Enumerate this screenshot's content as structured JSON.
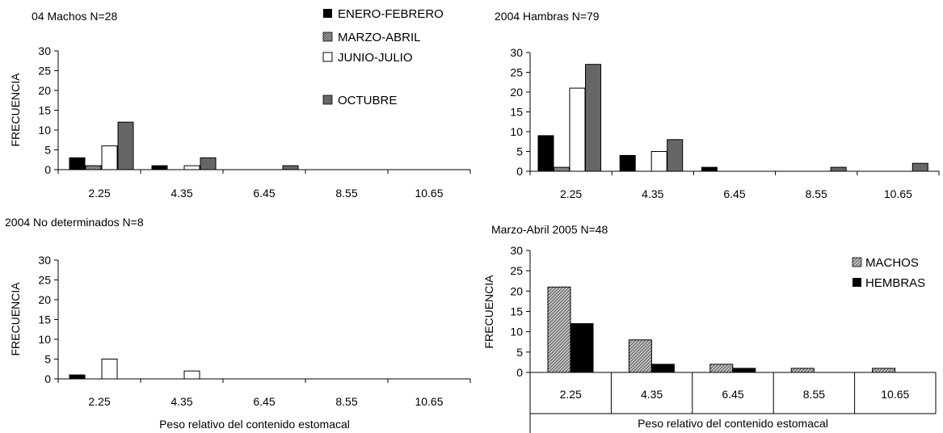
{
  "legends": {
    "seasons": [
      "ENERO-FEBRERO",
      "MARZO-ABRIL",
      "JUNIO-JULIO",
      "OCTUBRE"
    ],
    "sexes": [
      "MACHOS",
      "HEMBRAS"
    ]
  },
  "colors": {
    "enero_febrero": "#000000",
    "marzo_abril": "hatched-gray",
    "junio_julio": "#ffffff",
    "octubre": "#666666",
    "machos": "hatched-gray",
    "hembras": "#000000"
  },
  "chart_data": [
    {
      "type": "bar",
      "title": "04 Machos N=28",
      "ylabel": "FRECUENCIA",
      "xlabel": "",
      "ylim": [
        0,
        30
      ],
      "yticks": [
        0,
        5,
        10,
        15,
        20,
        25,
        30
      ],
      "categories": [
        "2.25",
        "4.35",
        "6.45",
        "8.55",
        "10.65"
      ],
      "series": [
        {
          "name": "ENERO-FEBRERO",
          "values": [
            3,
            1,
            0,
            0,
            0
          ]
        },
        {
          "name": "MARZO-ABRIL",
          "values": [
            1,
            0,
            0,
            0,
            0
          ]
        },
        {
          "name": "JUNIO-JULIO",
          "values": [
            6,
            1,
            0,
            0,
            0
          ]
        },
        {
          "name": "OCTUBRE",
          "values": [
            12,
            3,
            1,
            0,
            0
          ]
        }
      ]
    },
    {
      "type": "bar",
      "title": "2004 Hambras N=79",
      "ylabel": "",
      "xlabel": "",
      "ylim": [
        0,
        30
      ],
      "yticks": [
        0,
        5,
        10,
        15,
        20,
        25,
        30
      ],
      "categories": [
        "2.25",
        "4.35",
        "6.45",
        "8.55",
        "10.65"
      ],
      "series": [
        {
          "name": "ENERO-FEBRERO",
          "values": [
            9,
            4,
            1,
            0,
            0
          ]
        },
        {
          "name": "MARZO-ABRIL",
          "values": [
            1,
            0,
            0,
            0,
            0
          ]
        },
        {
          "name": "JUNIO-JULIO",
          "values": [
            21,
            5,
            0,
            0,
            0
          ]
        },
        {
          "name": "OCTUBRE",
          "values": [
            27,
            8,
            0,
            1,
            2
          ]
        }
      ]
    },
    {
      "type": "bar",
      "title": "2004 No determinados N=8",
      "ylabel": "FRECUENCIA",
      "xlabel": "Peso relativo del contenido estomacal",
      "ylim": [
        0,
        30
      ],
      "yticks": [
        0,
        5,
        10,
        15,
        20,
        25,
        30
      ],
      "categories": [
        "2.25",
        "4.35",
        "6.45",
        "8.55",
        "10.65"
      ],
      "series": [
        {
          "name": "ENERO-FEBRERO",
          "values": [
            1,
            0,
            0,
            0,
            0
          ]
        },
        {
          "name": "MARZO-ABRIL",
          "values": [
            0,
            0,
            0,
            0,
            0
          ]
        },
        {
          "name": "JUNIO-JULIO",
          "values": [
            5,
            2,
            0,
            0,
            0
          ]
        },
        {
          "name": "OCTUBRE",
          "values": [
            0,
            0,
            0,
            0,
            0
          ]
        }
      ]
    },
    {
      "type": "bar",
      "title": "Marzo-Abril 2005 N=48",
      "ylabel": "FRECUENCIA",
      "xlabel": "Peso relativo del contenido estomacal",
      "ylim": [
        0,
        30
      ],
      "yticks": [
        0,
        5,
        10,
        15,
        20,
        25,
        30
      ],
      "categories": [
        "2.25",
        "4.35",
        "6.45",
        "8.55",
        "10.65"
      ],
      "series": [
        {
          "name": "MACHOS",
          "values": [
            21,
            8,
            2,
            1,
            1
          ]
        },
        {
          "name": "HEMBRAS",
          "values": [
            12,
            2,
            1,
            0,
            0
          ]
        }
      ]
    }
  ]
}
